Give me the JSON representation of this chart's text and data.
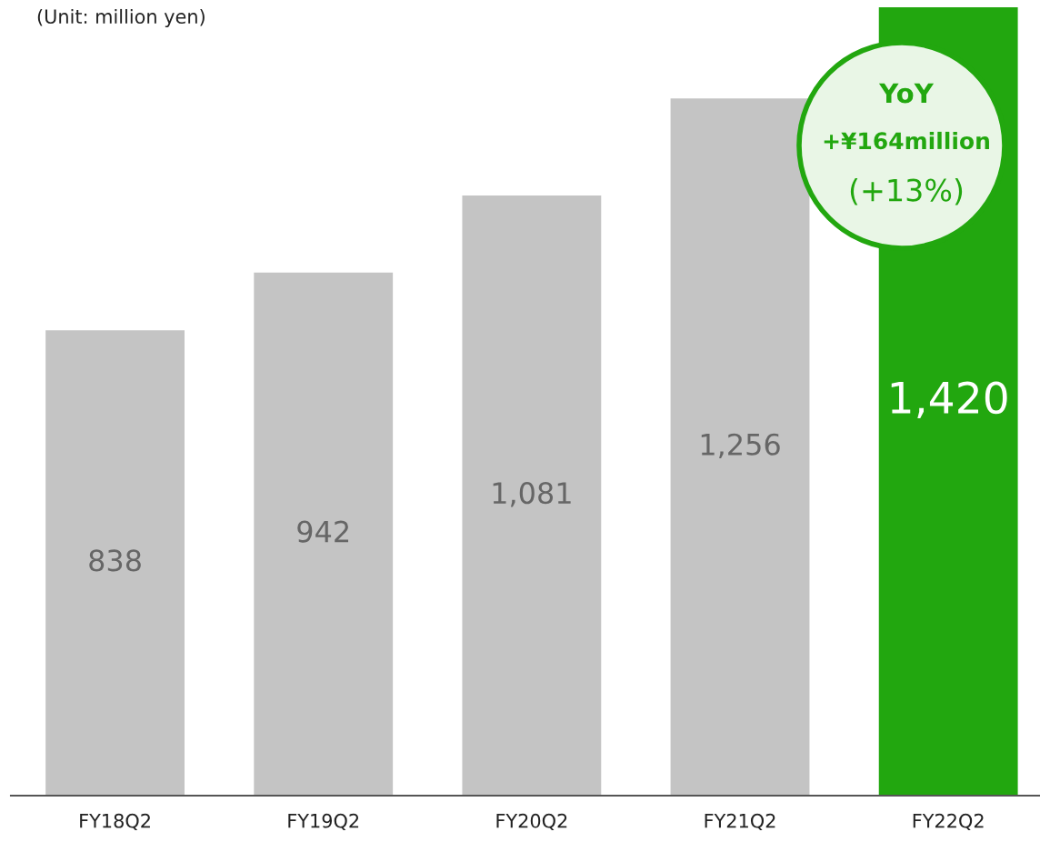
{
  "chart_data": {
    "type": "bar",
    "categories": [
      "FY18Q2",
      "FY19Q2",
      "FY20Q2",
      "FY21Q2",
      "FY22Q2"
    ],
    "values": [
      838,
      942,
      1081,
      1256,
      1420
    ],
    "colors": [
      "#c4c4c4",
      "#c4c4c4",
      "#c4c4c4",
      "#c4c4c4",
      "#22a70f"
    ],
    "value_labels": [
      "838",
      "942",
      "1,081",
      "1,256",
      "1,420"
    ],
    "ylim": [
      0,
      1420
    ],
    "tick_labels": "x",
    "grid": false,
    "legend": false,
    "annotations": [
      "(Unit: million yen)",
      "YoY",
      "+¥164million",
      "(+13%)"
    ]
  }
}
